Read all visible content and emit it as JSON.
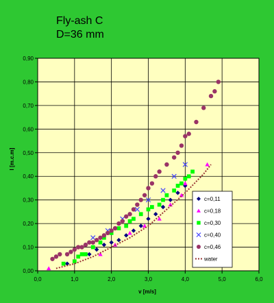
{
  "chart_data": {
    "type": "scatter",
    "title_lines": [
      "Fly-ash C",
      "D=36 mm"
    ],
    "xlabel": "v [m/s]",
    "ylabel": "I [m.c.m]",
    "xlim": [
      0,
      6
    ],
    "ylim": [
      0,
      0.9
    ],
    "x_ticks": [
      "0,0",
      "1,0",
      "2,0",
      "3,0",
      "4,0",
      "5,0",
      "6,0"
    ],
    "y_ticks": [
      "0,00",
      "0,10",
      "0,20",
      "0,30",
      "0,40",
      "0,50",
      "0,60",
      "0,70",
      "0,80",
      "0,90"
    ],
    "grid": true,
    "legend_position": "bottom-right",
    "colors": {
      "background": "#2ec832",
      "plot_area": "#ffffc0",
      "grid": "#000000"
    },
    "series": [
      {
        "name": "c=0,11",
        "marker": "diamond",
        "color": "#000080",
        "x": [
          0.8,
          1.4,
          1.6,
          1.8,
          2.0,
          2.2,
          2.4,
          2.6,
          2.8,
          3.0,
          3.2,
          3.4,
          3.6,
          3.8,
          4.0
        ],
        "y": [
          0.03,
          0.07,
          0.09,
          0.11,
          0.12,
          0.13,
          0.15,
          0.17,
          0.19,
          0.22,
          0.24,
          0.27,
          0.3,
          0.33,
          0.36
        ]
      },
      {
        "name": "c=0,18",
        "marker": "triangle",
        "color": "#ff00ff",
        "x": [
          0.3,
          1.7,
          2.1,
          2.5,
          2.9,
          3.3,
          3.6,
          3.9,
          4.0,
          4.6
        ],
        "y": [
          0.01,
          0.07,
          0.11,
          0.16,
          0.19,
          0.22,
          0.28,
          0.32,
          0.37,
          0.45
        ]
      },
      {
        "name": "c=0,30",
        "marker": "square",
        "color": "#00ff00",
        "x": [
          0.7,
          1.0,
          1.1,
          1.2,
          1.3,
          1.5,
          1.7,
          1.8,
          2.0,
          2.2,
          2.4,
          2.5,
          2.6,
          2.8,
          3.0,
          3.1,
          3.3,
          3.4,
          3.5,
          3.7,
          3.8,
          3.9,
          4.0,
          4.1,
          4.2
        ],
        "y": [
          0.03,
          0.04,
          0.06,
          0.07,
          0.07,
          0.1,
          0.12,
          0.14,
          0.16,
          0.18,
          0.19,
          0.21,
          0.22,
          0.24,
          0.26,
          0.27,
          0.28,
          0.3,
          0.32,
          0.34,
          0.36,
          0.37,
          0.39,
          0.4,
          0.42
        ]
      },
      {
        "name": "c=0,40",
        "marker": "x",
        "color": "#4040ff",
        "x": [
          1.5,
          1.9,
          2.3,
          2.7,
          3.0,
          3.4,
          3.7,
          4.0
        ],
        "y": [
          0.14,
          0.17,
          0.22,
          0.26,
          0.3,
          0.34,
          0.4,
          0.45
        ]
      },
      {
        "name": "c=0,46",
        "marker": "circle",
        "color": "#993366",
        "x": [
          0.4,
          0.5,
          0.6,
          0.8,
          0.9,
          1.0,
          1.1,
          1.2,
          1.3,
          1.4,
          1.5,
          1.6,
          1.7,
          1.8,
          1.9,
          2.0,
          2.1,
          2.2,
          2.3,
          2.4,
          2.5,
          2.6,
          2.7,
          2.8,
          2.9,
          3.0,
          3.1,
          3.2,
          3.3,
          3.5,
          3.7,
          3.8,
          3.9,
          4.0,
          4.1,
          4.3,
          4.5,
          4.7,
          4.8,
          4.9
        ],
        "y": [
          0.05,
          0.06,
          0.07,
          0.07,
          0.08,
          0.09,
          0.1,
          0.1,
          0.11,
          0.12,
          0.12,
          0.13,
          0.14,
          0.15,
          0.16,
          0.17,
          0.18,
          0.2,
          0.21,
          0.23,
          0.24,
          0.26,
          0.28,
          0.3,
          0.32,
          0.35,
          0.37,
          0.4,
          0.42,
          0.45,
          0.48,
          0.5,
          0.53,
          0.57,
          0.58,
          0.63,
          0.69,
          0.74,
          0.76,
          0.8
        ]
      },
      {
        "name": "water",
        "marker": "dotted-line",
        "color": "#993333",
        "x": [
          0.5,
          1.0,
          1.5,
          2.0,
          2.5,
          3.0,
          3.5,
          4.0,
          4.5,
          4.7
        ],
        "y": [
          0.01,
          0.03,
          0.06,
          0.1,
          0.14,
          0.19,
          0.26,
          0.33,
          0.41,
          0.45
        ]
      }
    ]
  }
}
